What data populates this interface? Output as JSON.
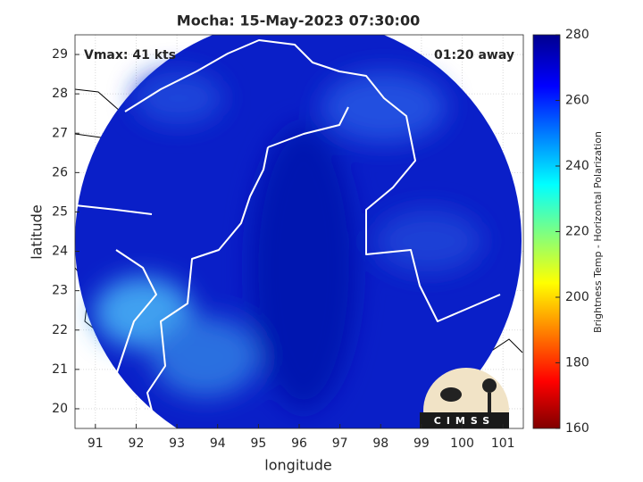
{
  "chart_data": {
    "type": "map",
    "title": "Mocha: 15-May-2023 07:30:00",
    "annotations": [
      "Vmax: 41 kts",
      "01:20 away"
    ],
    "x_label": "longitude",
    "y_label": "latitude",
    "xlim": [
      90.5,
      101.5
    ],
    "xticks": [
      91,
      92,
      93,
      94,
      95,
      96,
      97,
      98,
      99,
      100,
      101
    ],
    "ylim": [
      19.5,
      29.5
    ],
    "yticks": [
      20,
      21,
      22,
      23,
      24,
      25,
      26,
      27,
      28,
      29
    ],
    "grid": true,
    "colorbar": {
      "label": "Brightness Temp - Horizontal Polarization",
      "lim": [
        160,
        280
      ],
      "ticks": [
        160,
        180,
        200,
        220,
        240,
        260,
        280
      ]
    },
    "logo_text": "CIMSS"
  }
}
